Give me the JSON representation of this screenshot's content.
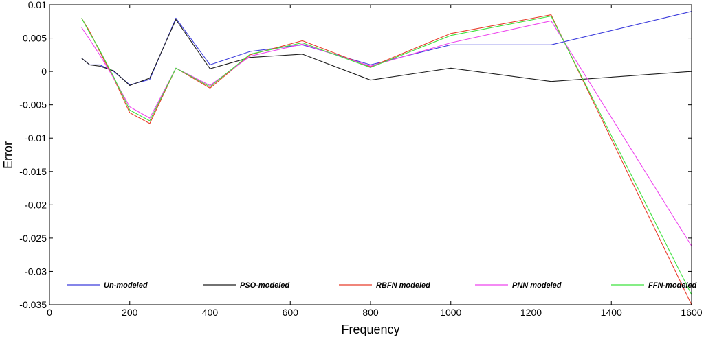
{
  "chart_data": {
    "type": "line",
    "title": "",
    "xlabel": "Frequency",
    "ylabel": "Error",
    "xlim": [
      0,
      1600
    ],
    "ylim": [
      -0.035,
      0.01
    ],
    "xticks": [
      0,
      200,
      400,
      600,
      800,
      1000,
      1200,
      1400,
      1600
    ],
    "xtick_labels": [
      "0",
      "200",
      "400",
      "600",
      "800",
      "1000",
      "1200",
      "1400",
      "1600"
    ],
    "yticks": [
      0.01,
      0.005,
      0,
      -0.005,
      -0.01,
      -0.015,
      -0.02,
      -0.025,
      -0.03,
      -0.035
    ],
    "ytick_labels": [
      "0.01",
      "0.005",
      "0",
      "-0.005",
      "-0.01",
      "-0.015",
      "-0.02",
      "-0.025",
      "-0.03",
      "-0.035"
    ],
    "grid": false,
    "legend_position": "bottom",
    "x": [
      80,
      100,
      125,
      160,
      200,
      250,
      315,
      400,
      500,
      630,
      800,
      1000,
      1250,
      1600
    ],
    "series": [
      {
        "name": "Un-modeled",
        "color": "#3c3cdc",
        "values": [
          0.002,
          0.001,
          0.001,
          0.0,
          -0.002,
          -0.0012,
          0.008,
          0.001,
          0.003,
          0.004,
          0.001,
          0.004,
          0.004,
          0.009
        ]
      },
      {
        "name": "PSO-modeled",
        "color": "#1e1e1e",
        "values": [
          0.002,
          0.001,
          0.0008,
          0.0001,
          -0.0021,
          -0.001,
          0.0078,
          0.0004,
          0.0021,
          0.0026,
          -0.0013,
          0.0005,
          -0.0015,
          0.0
        ]
      },
      {
        "name": "RBFN modeled",
        "color": "#e83c2a",
        "values": [
          0.008,
          0.006,
          0.003,
          -0.001,
          -0.0062,
          -0.0078,
          0.0005,
          -0.0025,
          0.0025,
          0.0046,
          0.0007,
          0.0057,
          0.0085,
          -0.035
        ]
      },
      {
        "name": "PNN modeled",
        "color": "#ee44ee",
        "values": [
          0.0066,
          0.0048,
          0.0025,
          -0.001,
          -0.0053,
          -0.007,
          0.0005,
          -0.0021,
          0.0023,
          0.0041,
          0.0008,
          0.0043,
          0.0076,
          -0.0262
        ]
      },
      {
        "name": "FFN-modeled",
        "color": "#3ee23e",
        "values": [
          0.008,
          0.0058,
          0.0032,
          -0.0008,
          -0.0058,
          -0.0074,
          0.0005,
          -0.0023,
          0.0026,
          0.0043,
          0.0006,
          0.0054,
          0.0083,
          -0.0335
        ]
      }
    ]
  }
}
